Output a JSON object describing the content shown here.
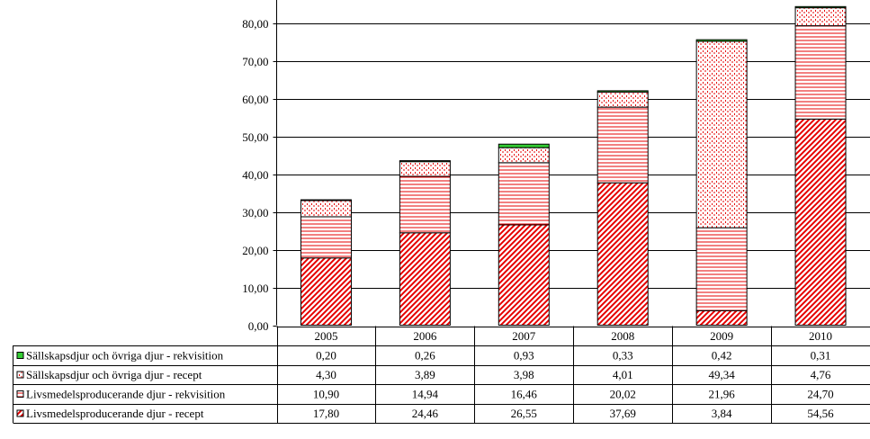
{
  "chart_data": {
    "type": "bar",
    "stacked": true,
    "categories": [
      "2005",
      "2006",
      "2007",
      "2008",
      "2009",
      "2010"
    ],
    "ylim": [
      0,
      80
    ],
    "yticks": [
      "0,00",
      "10,00",
      "20,00",
      "30,00",
      "40,00",
      "50,00",
      "60,00",
      "70,00",
      "80,00"
    ],
    "grid": true,
    "legend_placement": "data-table-left",
    "series": [
      {
        "name": "Livsmedelsproducerande djur - recept",
        "values": [
          17.8,
          24.46,
          26.55,
          37.69,
          3.84,
          54.56
        ],
        "labels": [
          "17,80",
          "24,46",
          "26,55",
          "37,69",
          "3,84",
          "54,56"
        ],
        "color": "#e60000",
        "pattern": "diagonal"
      },
      {
        "name": "Livsmedelsproducerande djur - rekvisition",
        "values": [
          10.9,
          14.94,
          16.46,
          20.02,
          21.96,
          24.7
        ],
        "labels": [
          "10,90",
          "14,94",
          "16,46",
          "20,02",
          "21,96",
          "24,70"
        ],
        "color": "#e60000",
        "pattern": "horizontal"
      },
      {
        "name": "Sällskapsdjur och övriga djur - recept",
        "values": [
          4.3,
          3.89,
          3.98,
          4.01,
          49.34,
          4.76
        ],
        "labels": [
          "4,30",
          "3,89",
          "3,98",
          "4,01",
          "49,34",
          "4,76"
        ],
        "color": "#e60000",
        "pattern": "dots"
      },
      {
        "name": "Sällskapsdjur och övriga djur - rekvisition",
        "values": [
          0.2,
          0.26,
          0.93,
          0.33,
          0.42,
          0.31
        ],
        "labels": [
          "0,20",
          "0,26",
          "0,93",
          "0,33",
          "0,42",
          "0,31"
        ],
        "color": "#33cc33",
        "pattern": "solid"
      }
    ],
    "table_row_order": [
      3,
      2,
      1,
      0
    ]
  }
}
